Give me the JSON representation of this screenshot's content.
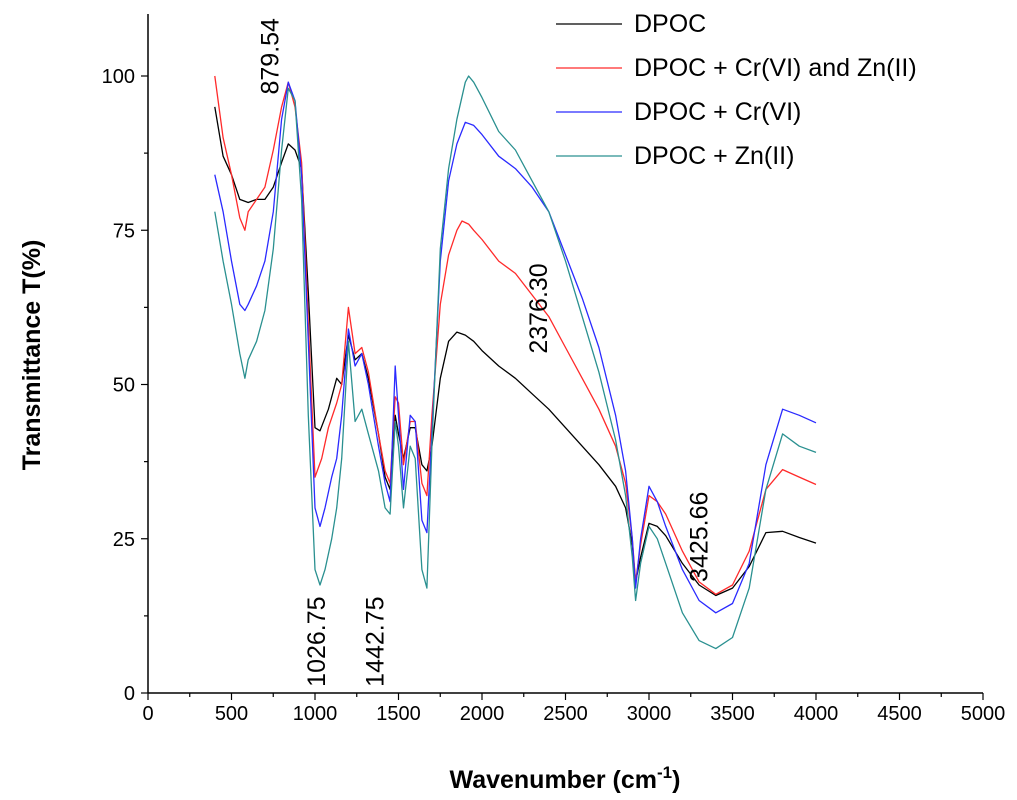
{
  "chart_data": {
    "type": "line",
    "xlabel": "Wavenumber (cm",
    "xlabel_sup": "-1",
    "xlabel_end": ")",
    "ylabel": "Transmittance T(%)",
    "xlim": [
      0,
      5000
    ],
    "ylim": [
      0,
      100
    ],
    "x_ticks": [
      0,
      500,
      1000,
      1500,
      2000,
      2500,
      3000,
      3500,
      4000,
      4500,
      5000
    ],
    "y_ticks": [
      0,
      25,
      50,
      75,
      100
    ],
    "grid": false,
    "legend_position": "top-right",
    "series": [
      {
        "name": "DPOC",
        "color": "#000000",
        "points": [
          [
            400,
            95
          ],
          [
            450,
            87
          ],
          [
            500,
            84
          ],
          [
            550,
            80
          ],
          [
            600,
            79.5
          ],
          [
            650,
            80
          ],
          [
            700,
            80
          ],
          [
            750,
            82
          ],
          [
            800,
            86
          ],
          [
            840,
            89
          ],
          [
            880,
            88
          ],
          [
            920,
            85
          ],
          [
            960,
            65
          ],
          [
            1000,
            43
          ],
          [
            1030,
            42.5
          ],
          [
            1080,
            46
          ],
          [
            1130,
            51
          ],
          [
            1160,
            50
          ],
          [
            1200,
            58
          ],
          [
            1240,
            54
          ],
          [
            1280,
            55
          ],
          [
            1320,
            51
          ],
          [
            1380,
            42
          ],
          [
            1420,
            35
          ],
          [
            1450,
            33
          ],
          [
            1480,
            45
          ],
          [
            1500,
            42
          ],
          [
            1530,
            38
          ],
          [
            1570,
            43
          ],
          [
            1600,
            43
          ],
          [
            1640,
            37
          ],
          [
            1670,
            36
          ],
          [
            1700,
            40
          ],
          [
            1750,
            51
          ],
          [
            1800,
            57
          ],
          [
            1850,
            58.5
          ],
          [
            1900,
            58
          ],
          [
            1950,
            57
          ],
          [
            2000,
            55.5
          ],
          [
            2100,
            53
          ],
          [
            2200,
            51
          ],
          [
            2300,
            48.5
          ],
          [
            2400,
            46
          ],
          [
            2500,
            43
          ],
          [
            2600,
            40
          ],
          [
            2700,
            37
          ],
          [
            2800,
            33.5
          ],
          [
            2860,
            30
          ],
          [
            2900,
            24
          ],
          [
            2920,
            18
          ],
          [
            2950,
            22
          ],
          [
            3000,
            27.5
          ],
          [
            3050,
            27
          ],
          [
            3100,
            25.5
          ],
          [
            3200,
            21
          ],
          [
            3300,
            17.5
          ],
          [
            3400,
            15.8
          ],
          [
            3500,
            17
          ],
          [
            3600,
            20.5
          ],
          [
            3700,
            26
          ],
          [
            3800,
            26.2
          ],
          [
            3900,
            25.2
          ],
          [
            4000,
            24.3
          ]
        ]
      },
      {
        "name": "DPOC + Cr(VI) and Zn(II)",
        "color": "#ff2a2a",
        "points": [
          [
            400,
            100
          ],
          [
            450,
            90
          ],
          [
            500,
            84
          ],
          [
            550,
            77
          ],
          [
            580,
            75
          ],
          [
            600,
            78
          ],
          [
            650,
            80
          ],
          [
            700,
            82
          ],
          [
            750,
            88
          ],
          [
            800,
            95
          ],
          [
            840,
            99
          ],
          [
            880,
            95
          ],
          [
            920,
            86
          ],
          [
            960,
            60
          ],
          [
            1000,
            35
          ],
          [
            1040,
            38
          ],
          [
            1080,
            43
          ],
          [
            1130,
            47
          ],
          [
            1160,
            50
          ],
          [
            1200,
            62.5
          ],
          [
            1240,
            55
          ],
          [
            1280,
            56
          ],
          [
            1320,
            52
          ],
          [
            1380,
            42
          ],
          [
            1420,
            36
          ],
          [
            1450,
            34
          ],
          [
            1480,
            48
          ],
          [
            1500,
            47
          ],
          [
            1530,
            37
          ],
          [
            1570,
            44
          ],
          [
            1600,
            44
          ],
          [
            1640,
            34
          ],
          [
            1670,
            32
          ],
          [
            1700,
            45
          ],
          [
            1750,
            63
          ],
          [
            1800,
            71
          ],
          [
            1850,
            75
          ],
          [
            1880,
            76.5
          ],
          [
            1920,
            76
          ],
          [
            1950,
            75
          ],
          [
            2000,
            73.5
          ],
          [
            2100,
            70
          ],
          [
            2200,
            68
          ],
          [
            2300,
            64.5
          ],
          [
            2400,
            61
          ],
          [
            2500,
            56
          ],
          [
            2600,
            51
          ],
          [
            2700,
            46
          ],
          [
            2800,
            40
          ],
          [
            2860,
            34
          ],
          [
            2900,
            25
          ],
          [
            2920,
            18
          ],
          [
            2950,
            24
          ],
          [
            3000,
            32
          ],
          [
            3050,
            31
          ],
          [
            3100,
            29
          ],
          [
            3200,
            23
          ],
          [
            3300,
            18
          ],
          [
            3400,
            16
          ],
          [
            3500,
            17.5
          ],
          [
            3600,
            23
          ],
          [
            3700,
            33
          ],
          [
            3800,
            36.2
          ],
          [
            3900,
            35
          ],
          [
            4000,
            33.8
          ]
        ]
      },
      {
        "name": "DPOC + Cr(VI)",
        "color": "#2a2aff",
        "points": [
          [
            400,
            84
          ],
          [
            450,
            78
          ],
          [
            500,
            70
          ],
          [
            550,
            63
          ],
          [
            580,
            62
          ],
          [
            600,
            63
          ],
          [
            650,
            66
          ],
          [
            700,
            70
          ],
          [
            750,
            78
          ],
          [
            800,
            93
          ],
          [
            840,
            99
          ],
          [
            880,
            96
          ],
          [
            920,
            84
          ],
          [
            960,
            57
          ],
          [
            1000,
            30
          ],
          [
            1030,
            27
          ],
          [
            1060,
            30
          ],
          [
            1100,
            35
          ],
          [
            1130,
            38
          ],
          [
            1160,
            45
          ],
          [
            1200,
            59
          ],
          [
            1240,
            53
          ],
          [
            1280,
            55
          ],
          [
            1320,
            50
          ],
          [
            1380,
            40
          ],
          [
            1420,
            34
          ],
          [
            1450,
            31
          ],
          [
            1480,
            53
          ],
          [
            1500,
            45
          ],
          [
            1530,
            33
          ],
          [
            1570,
            45
          ],
          [
            1600,
            44
          ],
          [
            1640,
            28
          ],
          [
            1670,
            26
          ],
          [
            1700,
            42
          ],
          [
            1750,
            70
          ],
          [
            1800,
            83
          ],
          [
            1850,
            89
          ],
          [
            1900,
            92.5
          ],
          [
            1950,
            92
          ],
          [
            2000,
            90.5
          ],
          [
            2100,
            87
          ],
          [
            2200,
            85
          ],
          [
            2300,
            82
          ],
          [
            2400,
            78
          ],
          [
            2500,
            71
          ],
          [
            2600,
            64
          ],
          [
            2700,
            56
          ],
          [
            2800,
            45
          ],
          [
            2860,
            36
          ],
          [
            2900,
            25
          ],
          [
            2920,
            17
          ],
          [
            2950,
            25
          ],
          [
            3000,
            33.5
          ],
          [
            3050,
            31
          ],
          [
            3100,
            27
          ],
          [
            3200,
            20
          ],
          [
            3300,
            15
          ],
          [
            3400,
            13
          ],
          [
            3500,
            14.5
          ],
          [
            3600,
            21
          ],
          [
            3700,
            37
          ],
          [
            3800,
            46
          ],
          [
            3900,
            45
          ],
          [
            4000,
            43.8
          ]
        ]
      },
      {
        "name": "DPOC + Zn(II)",
        "color": "#2a9090",
        "points": [
          [
            400,
            78
          ],
          [
            450,
            70
          ],
          [
            500,
            63
          ],
          [
            550,
            55
          ],
          [
            580,
            51
          ],
          [
            600,
            54
          ],
          [
            650,
            57
          ],
          [
            700,
            62
          ],
          [
            750,
            72
          ],
          [
            800,
            88
          ],
          [
            840,
            98
          ],
          [
            880,
            96
          ],
          [
            920,
            80
          ],
          [
            960,
            45
          ],
          [
            1000,
            20
          ],
          [
            1030,
            17.5
          ],
          [
            1060,
            20
          ],
          [
            1100,
            25
          ],
          [
            1130,
            30
          ],
          [
            1160,
            38
          ],
          [
            1200,
            57
          ],
          [
            1240,
            44
          ],
          [
            1280,
            46
          ],
          [
            1320,
            42
          ],
          [
            1380,
            36
          ],
          [
            1420,
            30
          ],
          [
            1450,
            29
          ],
          [
            1480,
            44
          ],
          [
            1500,
            40
          ],
          [
            1530,
            30
          ],
          [
            1570,
            40
          ],
          [
            1600,
            38
          ],
          [
            1640,
            20
          ],
          [
            1670,
            17
          ],
          [
            1700,
            40
          ],
          [
            1750,
            72
          ],
          [
            1800,
            85
          ],
          [
            1850,
            93
          ],
          [
            1900,
            99
          ],
          [
            1920,
            100
          ],
          [
            1950,
            99
          ],
          [
            2000,
            96.5
          ],
          [
            2100,
            91
          ],
          [
            2200,
            88
          ],
          [
            2300,
            83
          ],
          [
            2400,
            78
          ],
          [
            2500,
            70
          ],
          [
            2600,
            61
          ],
          [
            2700,
            52
          ],
          [
            2800,
            41
          ],
          [
            2860,
            32
          ],
          [
            2900,
            22
          ],
          [
            2920,
            15
          ],
          [
            2950,
            21
          ],
          [
            3000,
            27
          ],
          [
            3050,
            25
          ],
          [
            3100,
            21
          ],
          [
            3200,
            13
          ],
          [
            3300,
            8.5
          ],
          [
            3400,
            7.2
          ],
          [
            3500,
            9
          ],
          [
            3600,
            17
          ],
          [
            3700,
            33
          ],
          [
            3800,
            42
          ],
          [
            3900,
            40
          ],
          [
            4000,
            39
          ]
        ]
      }
    ],
    "annotations": [
      {
        "text": "879.54",
        "x": 780,
        "y": 97
      },
      {
        "text": "1026.75",
        "x": 1060,
        "y": 1
      },
      {
        "text": "1442.75",
        "x": 1410,
        "y": 1
      },
      {
        "text": "2376.30",
        "x": 2390,
        "y": 55
      },
      {
        "text": "3425.66",
        "x": 3350,
        "y": 18
      }
    ]
  }
}
